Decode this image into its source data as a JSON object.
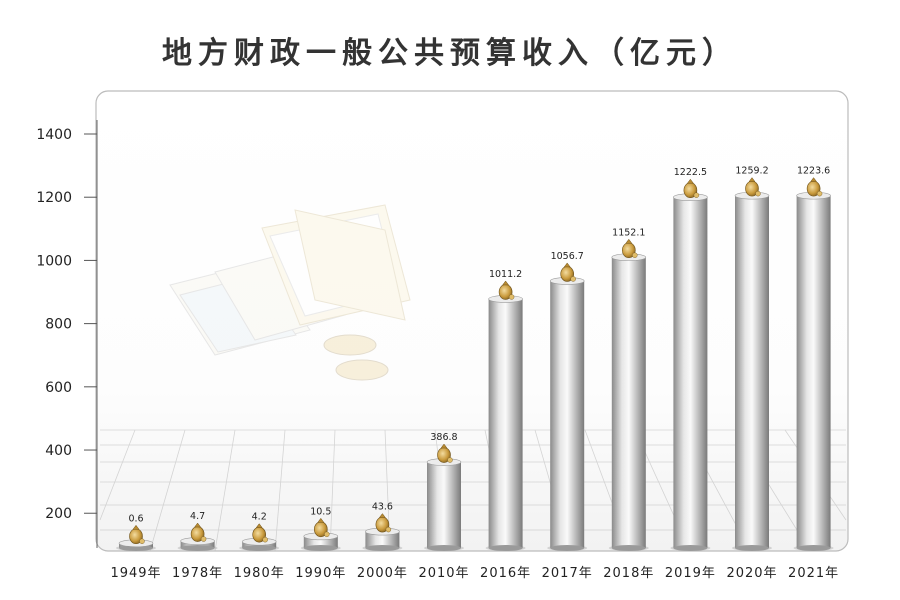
{
  "title": "地方财政一般公共预算收入（亿元）",
  "chart_data": {
    "type": "bar",
    "title": "地方财政一般公共预算收入（亿元）",
    "xlabel": "",
    "ylabel": "",
    "categories": [
      "1949年",
      "1978年",
      "1980年",
      "1990年",
      "2000年",
      "2010年",
      "2016年",
      "2017年",
      "2018年",
      "2019年",
      "2020年",
      "2021年"
    ],
    "values": [
      0.6,
      4.7,
      4.2,
      10.5,
      43.6,
      386.8,
      1011.2,
      1056.7,
      1152.1,
      1222.5,
      1259.2,
      1223.6
    ],
    "bar_heights_axis": [
      105,
      112,
      110,
      127,
      142,
      362,
      878,
      935,
      1010,
      1200,
      1205,
      1205
    ],
    "yticks": [
      200,
      400,
      600,
      800,
      1000,
      1200,
      1400
    ],
    "ylim": [
      90,
      1400
    ],
    "grid": false,
    "legend": "none",
    "colors": {
      "bar_dark": "#8c8c8c",
      "bar_light": "#f4f4f4",
      "coin": "#c99a3c"
    }
  }
}
